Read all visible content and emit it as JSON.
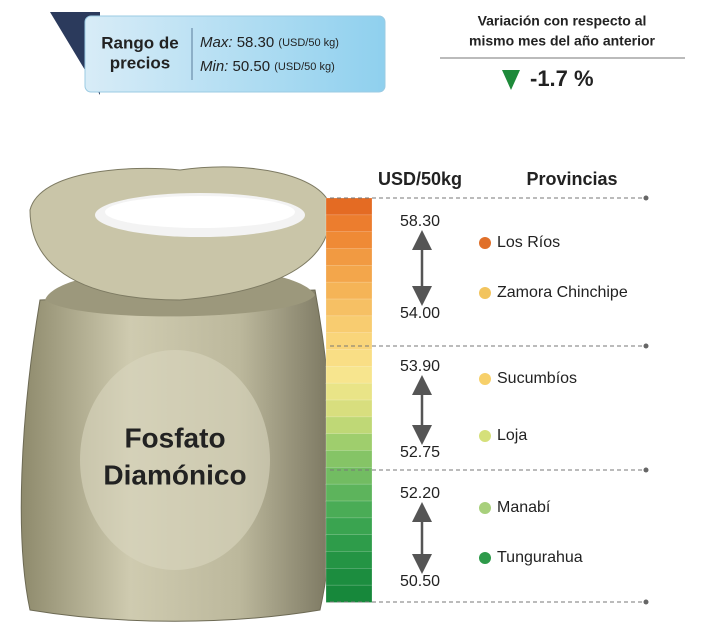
{
  "price_range": {
    "title": [
      "Rango de",
      "precios"
    ],
    "max_label": "Max:",
    "max_value": "58.30",
    "max_unit": "(USD/50 kg)",
    "min_label": "Min:",
    "min_value": "50.50",
    "min_unit": "(USD/50 kg)"
  },
  "variation": {
    "title": [
      "Variación con respecto al",
      "mismo mes del año anterior"
    ],
    "value": "-1.7 %"
  },
  "product": [
    "Fosfato",
    "Diamónico"
  ],
  "headers": {
    "price": "USD/50kg",
    "provinces": "Provincias"
  },
  "groups": [
    {
      "high": "58.30",
      "low": "54.00",
      "provinces": [
        {
          "name": "Los Ríos",
          "color": "#e0702a"
        },
        {
          "name": "Zamora Chinchipe",
          "color": "#f2c45e"
        }
      ]
    },
    {
      "high": "53.90",
      "low": "52.75",
      "provinces": [
        {
          "name": "Sucumbíos",
          "color": "#f7d06a"
        },
        {
          "name": "Loja",
          "color": "#d5e07a"
        }
      ]
    },
    {
      "high": "52.20",
      "low": "50.50",
      "provinces": [
        {
          "name": "Manabí",
          "color": "#a8d07c"
        },
        {
          "name": "Tungurahua",
          "color": "#2e9a4a"
        }
      ]
    }
  ]
}
